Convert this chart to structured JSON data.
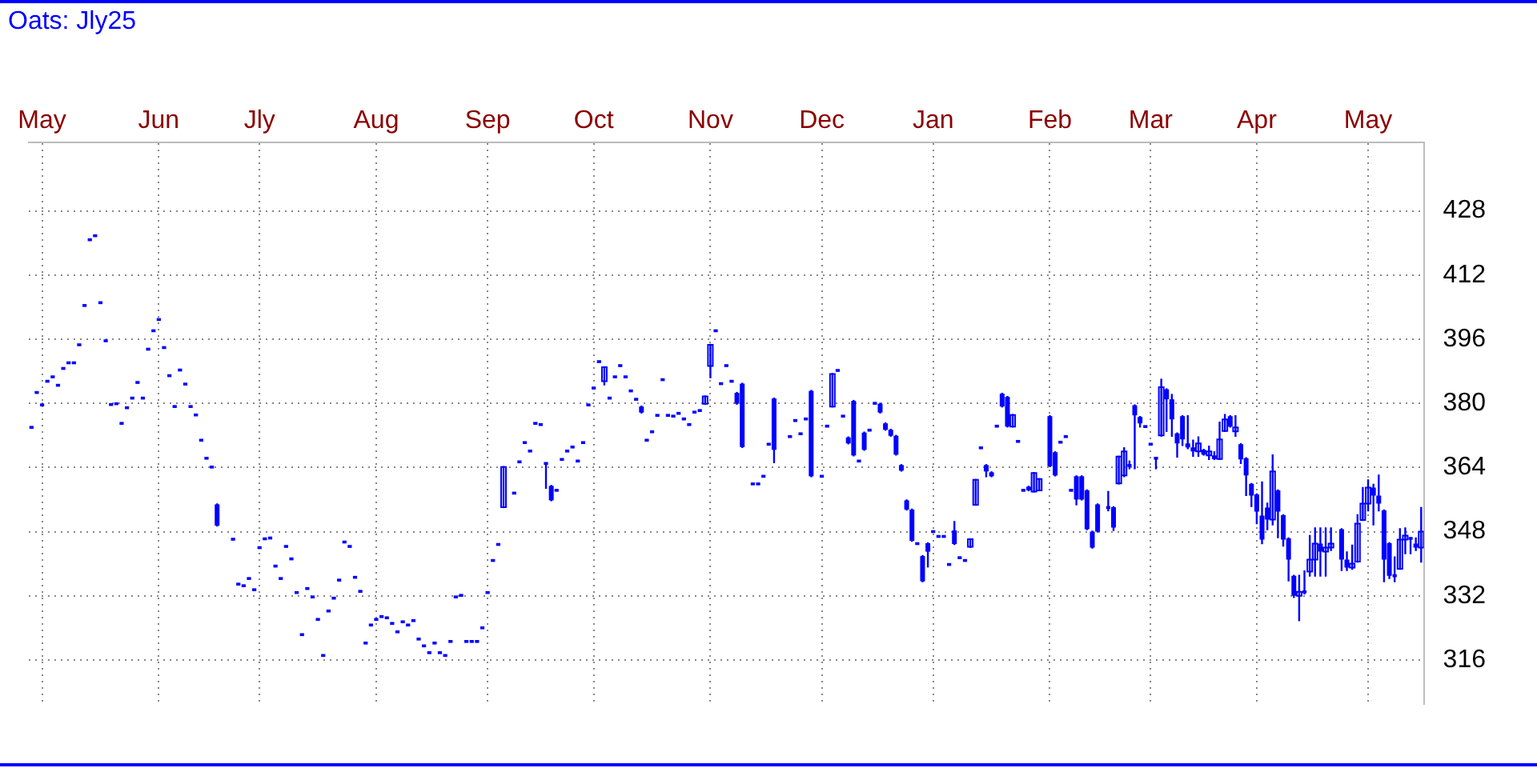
{
  "chart_data": {
    "type": "candlestick",
    "title": "Oats: Jly25",
    "color": "#0000ff",
    "categories": [
      null,
      null,
      "May",
      null,
      null,
      null,
      null,
      null,
      null,
      null,
      null,
      null,
      null,
      null,
      null,
      null,
      null,
      null,
      null,
      null,
      null,
      null,
      null,
      null,
      "Jun",
      null,
      null,
      null,
      null,
      null,
      null,
      null,
      null,
      null,
      null,
      null,
      null,
      null,
      null,
      null,
      null,
      null,
      null,
      "Jly",
      null,
      null,
      null,
      null,
      null,
      null,
      null,
      null,
      null,
      null,
      null,
      null,
      null,
      null,
      null,
      null,
      null,
      null,
      null,
      null,
      null,
      "Aug",
      null,
      null,
      null,
      null,
      null,
      null,
      null,
      null,
      null,
      null,
      null,
      null,
      null,
      null,
      null,
      null,
      null,
      null,
      null,
      null,
      "Sep",
      null,
      null,
      null,
      null,
      null,
      null,
      null,
      null,
      null,
      null,
      null,
      null,
      null,
      null,
      null,
      null,
      null,
      null,
      null,
      "Oct",
      null,
      null,
      null,
      null,
      null,
      null,
      null,
      null,
      null,
      null,
      null,
      null,
      null,
      null,
      null,
      null,
      null,
      null,
      null,
      null,
      null,
      "Nov",
      null,
      null,
      null,
      null,
      null,
      null,
      null,
      null,
      null,
      null,
      null,
      null,
      null,
      null,
      null,
      null,
      null,
      null,
      null,
      null,
      "Dec",
      null,
      null,
      null,
      null,
      null,
      null,
      null,
      null,
      null,
      null,
      null,
      null,
      null,
      null,
      null,
      null,
      null,
      null,
      null,
      null,
      "Jan",
      null,
      null,
      null,
      null,
      null,
      null,
      null,
      null,
      null,
      null,
      null,
      null,
      null,
      null,
      null,
      null,
      null,
      null,
      null,
      null,
      null,
      "Feb",
      null,
      null,
      null,
      null,
      null,
      null,
      null,
      null,
      null,
      null,
      null,
      null,
      null,
      null,
      null,
      null,
      null,
      null,
      "Mar",
      null,
      null,
      null,
      null,
      null,
      null,
      null,
      null,
      null,
      null,
      null,
      null,
      null,
      null,
      null,
      null,
      null,
      null,
      null,
      "Apr",
      null,
      null,
      null,
      null,
      null,
      null,
      null,
      null,
      null,
      null,
      null,
      null,
      null,
      null,
      null,
      null,
      null,
      null,
      null,
      null,
      "May",
      null,
      null,
      null,
      null,
      null,
      null,
      null,
      null,
      null,
      null
    ],
    "ohlc": [
      [
        374.0,
        374.0,
        374.0,
        374.0
      ],
      [
        382.7,
        382.7,
        382.7,
        382.7
      ],
      [
        379.6,
        379.6,
        379.6,
        379.6
      ],
      [
        385.5,
        385.5,
        385.5,
        385.5
      ],
      [
        386.6,
        386.6,
        386.6,
        386.6
      ],
      [
        384.5,
        384.5,
        384.5,
        384.5
      ],
      [
        388.7,
        388.7,
        388.7,
        388.7
      ],
      [
        390.1,
        390.1,
        390.1,
        390.1
      ],
      [
        390.1,
        390.1,
        390.1,
        390.1
      ],
      [
        394.6,
        394.6,
        394.6,
        394.6
      ],
      [
        404.4,
        404.4,
        404.4,
        404.4
      ],
      [
        420.8,
        420.8,
        420.8,
        420.8
      ],
      [
        421.8,
        421.8,
        421.8,
        421.8
      ],
      [
        405.1,
        405.1,
        405.1,
        405.1
      ],
      [
        395.6,
        395.6,
        395.6,
        395.6
      ],
      [
        379.7,
        379.7,
        379.7,
        379.7
      ],
      [
        379.9,
        379.9,
        379.9,
        379.9
      ],
      [
        375.0,
        375.0,
        375.0,
        375.0
      ],
      [
        378.9,
        378.9,
        378.9,
        378.9
      ],
      [
        381.3,
        381.3,
        381.3,
        381.3
      ],
      [
        385.2,
        385.2,
        385.2,
        385.2
      ],
      [
        381.3,
        381.3,
        381.3,
        381.3
      ],
      [
        393.5,
        393.5,
        393.5,
        393.5
      ],
      [
        398.1,
        398.1,
        398.1,
        398.1
      ],
      [
        400.9,
        400.9,
        400.9,
        400.9
      ],
      [
        393.9,
        393.9,
        393.9,
        393.9
      ],
      [
        386.9,
        386.9,
        386.9,
        386.9
      ],
      [
        379.2,
        379.2,
        379.2,
        379.2
      ],
      [
        388.3,
        388.3,
        388.3,
        388.3
      ],
      [
        384.8,
        384.8,
        384.8,
        384.8
      ],
      [
        379.2,
        379.2,
        379.2,
        379.2
      ],
      [
        377.1,
        377.1,
        377.1,
        377.1
      ],
      [
        370.8,
        370.8,
        370.8,
        370.8
      ],
      [
        366.3,
        366.3,
        366.3,
        366.3
      ],
      [
        364.1,
        364.1,
        364.1,
        364.1
      ],
      [
        354.8,
        354.8,
        349.5,
        349.5
      ],
      null,
      null,
      [
        346.1,
        346.1,
        346.1,
        346.1
      ],
      [
        334.9,
        334.9,
        334.9,
        334.9
      ],
      [
        334.5,
        334.5,
        334.5,
        334.5
      ],
      [
        336.3,
        336.3,
        336.3,
        336.3
      ],
      [
        333.5,
        333.5,
        333.5,
        333.5
      ],
      [
        344.0,
        344.0,
        344.0,
        344.0
      ],
      [
        346.2,
        346.2,
        346.2,
        346.2
      ],
      [
        346.4,
        346.4,
        346.4,
        346.4
      ],
      [
        339.4,
        339.4,
        339.4,
        339.4
      ],
      [
        336.3,
        336.3,
        336.3,
        336.3
      ],
      [
        344.3,
        344.3,
        344.3,
        344.3
      ],
      [
        341.2,
        341.2,
        341.2,
        341.2
      ],
      [
        332.8,
        332.8,
        332.8,
        332.8
      ],
      [
        322.3,
        322.3,
        322.3,
        322.3
      ],
      [
        333.8,
        333.8,
        333.8,
        333.8
      ],
      [
        331.7,
        331.7,
        331.7,
        331.7
      ],
      [
        326.1,
        326.1,
        326.1,
        326.1
      ],
      [
        317.1,
        317.1,
        317.1,
        317.1
      ],
      [
        328.2,
        328.2,
        328.2,
        328.2
      ],
      [
        331.4,
        331.4,
        331.4,
        331.4
      ],
      [
        335.9,
        335.9,
        335.9,
        335.9
      ],
      [
        345.4,
        345.4,
        345.4,
        345.4
      ],
      [
        344.3,
        344.3,
        344.3,
        344.3
      ],
      [
        336.6,
        336.6,
        336.6,
        336.6
      ],
      [
        333.1,
        333.1,
        333.1,
        333.1
      ],
      [
        320.2,
        320.2,
        320.2,
        320.2
      ],
      [
        324.7,
        324.7,
        324.7,
        324.7
      ],
      [
        326.1,
        326.1,
        326.1,
        326.1
      ],
      [
        326.8,
        326.8,
        326.8,
        326.8
      ],
      [
        326.5,
        326.5,
        326.5,
        326.5
      ],
      [
        325.1,
        325.1,
        325.1,
        325.1
      ],
      [
        323.0,
        323.0,
        323.0,
        323.0
      ],
      [
        325.5,
        325.5,
        325.5,
        325.5
      ],
      [
        324.7,
        324.7,
        324.7,
        324.7
      ],
      [
        325.8,
        325.8,
        325.8,
        325.8
      ],
      [
        321.2,
        321.2,
        321.2,
        321.2
      ],
      [
        319.5,
        319.5,
        319.5,
        319.5
      ],
      [
        317.8,
        317.8,
        317.8,
        317.8
      ],
      [
        320.2,
        320.2,
        320.2,
        320.2
      ],
      [
        317.8,
        317.8,
        317.8,
        317.8
      ],
      [
        317.1,
        317.1,
        317.1,
        317.1
      ],
      [
        320.6,
        320.6,
        320.6,
        320.6
      ],
      [
        331.7,
        331.7,
        331.7,
        331.7
      ],
      [
        332.1,
        332.1,
        332.1,
        332.1
      ],
      [
        320.6,
        320.6,
        320.6,
        320.6
      ],
      [
        320.6,
        320.6,
        320.6,
        320.6
      ],
      [
        320.6,
        320.6,
        320.6,
        320.6
      ],
      [
        324.0,
        324.0,
        324.0,
        324.0
      ],
      [
        332.8,
        332.8,
        332.8,
        332.8
      ],
      [
        340.8,
        340.8,
        340.8,
        340.8
      ],
      [
        344.8,
        344.8,
        344.8,
        344.8
      ],
      [
        354.1,
        364.1,
        354.1,
        364.1
      ],
      null,
      [
        357.6,
        357.6,
        357.6,
        357.6
      ],
      [
        365.4,
        365.4,
        365.4,
        365.4
      ],
      [
        370.2,
        370.2,
        370.2,
        370.2
      ],
      [
        368.1,
        368.1,
        368.1,
        368.1
      ],
      [
        375.0,
        375.0,
        375.0,
        375.0
      ],
      [
        374.7,
        374.7,
        374.7,
        374.7
      ],
      [
        365.0,
        365.0,
        358.9,
        365.0
      ],
      [
        359.4,
        359.4,
        355.8,
        355.8
      ],
      [
        358.3,
        358.3,
        358.3,
        358.3
      ],
      [
        366.0,
        366.0,
        366.0,
        366.0
      ],
      [
        368.1,
        368.1,
        368.1,
        368.1
      ],
      [
        369.1,
        369.1,
        369.1,
        369.1
      ],
      [
        365.6,
        365.6,
        365.6,
        365.6
      ],
      [
        370.2,
        370.2,
        370.2,
        370.2
      ],
      [
        379.6,
        379.6,
        379.6,
        379.6
      ],
      [
        383.8,
        383.8,
        383.8,
        383.8
      ],
      [
        390.4,
        390.4,
        390.4,
        390.4
      ],
      [
        385.5,
        389.0,
        384.7,
        389.0
      ],
      [
        381.3,
        381.3,
        381.3,
        381.3
      ],
      [
        386.6,
        386.6,
        386.6,
        386.6
      ],
      [
        389.4,
        389.4,
        389.4,
        389.4
      ],
      [
        386.6,
        386.6,
        386.6,
        386.6
      ],
      [
        383.1,
        383.1,
        383.1,
        383.1
      ],
      [
        381.0,
        381.0,
        381.0,
        381.0
      ],
      [
        379.2,
        379.2,
        377.7,
        377.7
      ],
      [
        370.8,
        370.8,
        370.8,
        370.8
      ],
      [
        372.9,
        372.9,
        372.9,
        372.9
      ],
      [
        377.0,
        377.0,
        377.0,
        377.0
      ],
      [
        385.9,
        385.9,
        385.9,
        385.9
      ],
      [
        377.0,
        377.0,
        377.0,
        377.0
      ],
      [
        376.8,
        376.8,
        376.8,
        376.8
      ],
      [
        377.5,
        377.5,
        377.5,
        377.5
      ],
      [
        376.1,
        376.1,
        376.1,
        376.1
      ],
      [
        374.7,
        374.7,
        374.7,
        374.7
      ],
      [
        377.8,
        377.8,
        377.8,
        377.8
      ],
      [
        378.2,
        378.2,
        378.2,
        378.2
      ],
      [
        379.9,
        381.7,
        379.9,
        381.7
      ],
      [
        389.3,
        394.6,
        386.5,
        394.6
      ],
      [
        398.1,
        398.1,
        398.1,
        398.1
      ],
      [
        384.9,
        384.9,
        384.9,
        384.9
      ],
      [
        389.4,
        389.4,
        389.4,
        389.4
      ],
      [
        385.5,
        385.5,
        385.5,
        385.5
      ],
      [
        382.6,
        382.6,
        379.9,
        379.9
      ],
      [
        384.9,
        384.9,
        369.1,
        369.1
      ],
      null,
      [
        359.9,
        359.9,
        359.9,
        359.9
      ],
      [
        359.9,
        359.9,
        359.9,
        359.9
      ],
      [
        361.8,
        361.8,
        361.8,
        361.8
      ],
      [
        369.8,
        369.8,
        369.8,
        369.8
      ],
      [
        381.2,
        381.2,
        365.3,
        368.4
      ],
      null,
      null,
      [
        371.7,
        371.7,
        371.7,
        371.7
      ],
      [
        375.7,
        375.7,
        375.7,
        375.7
      ],
      [
        372.4,
        372.4,
        372.4,
        372.4
      ],
      [
        376.1,
        376.1,
        376.1,
        376.1
      ],
      [
        383.1,
        383.1,
        361.8,
        361.8
      ],
      null,
      [
        361.8,
        361.8,
        361.8,
        361.8
      ],
      [
        374.3,
        374.3,
        374.3,
        374.3
      ],
      [
        379.2,
        387.3,
        379.2,
        387.3
      ],
      [
        388.2,
        388.2,
        388.2,
        388.2
      ],
      [
        376.8,
        376.8,
        376.8,
        376.8
      ],
      [
        371.5,
        371.5,
        370.0,
        370.0
      ],
      [
        380.6,
        380.6,
        367.0,
        367.0
      ],
      [
        365.6,
        365.6,
        365.6,
        365.6
      ],
      [
        372.7,
        372.7,
        368.4,
        368.4
      ],
      [
        373.3,
        373.3,
        373.3,
        373.3
      ],
      [
        380.0,
        380.0,
        380.0,
        380.0
      ],
      [
        379.9,
        379.9,
        377.7,
        377.7
      ],
      [
        375.0,
        375.0,
        373.4,
        373.4
      ],
      [
        373.4,
        373.4,
        371.9,
        371.9
      ],
      [
        371.9,
        371.9,
        367.2,
        367.2
      ],
      [
        364.6,
        364.6,
        363.2,
        363.2
      ],
      [
        355.8,
        355.8,
        353.5,
        353.5
      ],
      [
        353.5,
        353.5,
        345.7,
        345.7
      ],
      [
        345.0,
        345.0,
        345.0,
        345.0
      ],
      [
        341.9,
        341.9,
        335.6,
        335.6
      ],
      [
        345.1,
        345.1,
        339.3,
        343.0
      ],
      [
        348.0,
        348.0,
        348.0,
        348.0
      ],
      [
        346.8,
        346.8,
        346.8,
        346.8
      ],
      [
        346.8,
        346.8,
        346.8,
        346.8
      ],
      [
        339.8,
        339.8,
        339.8,
        339.8
      ],
      [
        348.3,
        350.4,
        344.9,
        344.9
      ],
      [
        341.5,
        341.5,
        341.5,
        341.5
      ],
      [
        340.8,
        340.8,
        340.8,
        340.8
      ],
      [
        344.2,
        346.1,
        344.2,
        346.1
      ],
      [
        354.7,
        360.9,
        354.7,
        360.9
      ],
      [
        368.9,
        368.9,
        368.9,
        368.9
      ],
      [
        364.6,
        364.6,
        361.8,
        363.0
      ],
      [
        362.8,
        362.8,
        361.8,
        361.8
      ],
      [
        374.3,
        374.3,
        374.3,
        374.3
      ],
      [
        382.4,
        382.4,
        379.2,
        379.2
      ],
      [
        381.6,
        381.6,
        374.2,
        374.2
      ],
      [
        374.2,
        377.1,
        374.2,
        377.1
      ],
      [
        370.5,
        370.5,
        370.5,
        370.5
      ],
      [
        358.3,
        358.3,
        358.3,
        358.3
      ],
      [
        359.2,
        359.2,
        358.3,
        358.3
      ],
      [
        358.0,
        362.6,
        358.0,
        362.6
      ],
      [
        358.3,
        361.1,
        358.3,
        361.1
      ],
      null,
      [
        376.8,
        376.8,
        364.3,
        364.3
      ],
      [
        367.8,
        367.8,
        362.0,
        362.0
      ],
      [
        370.3,
        370.3,
        370.3,
        370.3
      ],
      [
        371.7,
        371.7,
        371.7,
        371.7
      ],
      [
        358.3,
        358.3,
        358.3,
        358.3
      ],
      [
        361.8,
        361.8,
        354.8,
        356.0
      ],
      [
        361.8,
        361.8,
        356.0,
        356.0
      ],
      [
        358.3,
        358.3,
        348.6,
        348.6
      ],
      [
        348.0,
        348.0,
        344.0,
        344.0
      ],
      [
        354.8,
        354.8,
        348.0,
        348.0
      ],
      null,
      [
        354.0,
        357.9,
        353.3,
        354.0
      ],
      [
        354.1,
        354.1,
        348.4,
        349.0
      ],
      [
        360.0,
        366.7,
        360.0,
        366.7
      ],
      [
        362.0,
        368.8,
        361.8,
        368.0
      ],
      [
        364.5,
        365.5,
        363.8,
        364.5
      ],
      [
        379.5,
        379.5,
        363.8,
        377.0
      ],
      [
        376.6,
        376.6,
        374.2,
        375.0
      ],
      [
        374.2,
        374.2,
        374.2,
        374.2
      ],
      [
        369.8,
        369.8,
        369.8,
        369.8
      ],
      [
        366.3,
        366.3,
        363.8,
        366.0
      ],
      [
        372.0,
        385.9,
        371.9,
        384.0
      ],
      [
        383.5,
        383.5,
        373.1,
        381.0
      ],
      [
        381.0,
        382.1,
        371.9,
        376.0
      ],
      [
        372.5,
        372.5,
        366.7,
        370.0
      ],
      [
        376.8,
        376.8,
        369.6,
        371.0
      ],
      [
        370.0,
        376.8,
        368.8,
        369.0
      ],
      [
        369.0,
        370.7,
        366.9,
        368.0
      ],
      [
        368.0,
        371.5,
        366.9,
        370.0
      ],
      [
        368.4,
        368.4,
        367.2,
        367.2
      ],
      [
        367.0,
        369.2,
        366.1,
        368.0
      ],
      [
        367.0,
        367.8,
        366.1,
        366.1
      ],
      [
        366.1,
        375.2,
        366.1,
        371.0
      ],
      [
        373.1,
        377.1,
        373.1,
        376.0
      ],
      [
        376.8,
        376.8,
        374.2,
        374.2
      ],
      [
        373.0,
        376.8,
        371.9,
        374.0
      ],
      [
        369.8,
        369.8,
        365.1,
        366.0
      ],
      [
        366.3,
        366.3,
        357.1,
        362.0
      ],
      [
        359.9,
        359.9,
        354.4,
        357.0
      ],
      [
        357.3,
        357.3,
        350.1,
        353.0
      ],
      [
        352.0,
        360.3,
        345.1,
        346.0
      ],
      [
        354.0,
        355.0,
        348.6,
        351.0
      ],
      [
        351.0,
        367.0,
        349.8,
        363.0
      ],
      [
        358.3,
        358.3,
        346.6,
        353.0
      ],
      [
        352.1,
        352.1,
        344.5,
        346.0
      ],
      [
        346.3,
        346.3,
        335.8,
        341.0
      ],
      [
        337.0,
        337.0,
        331.7,
        332.0
      ],
      [
        332.0,
        337.0,
        325.9,
        333.0
      ],
      [
        333.0,
        338.1,
        332.6,
        333.0
      ],
      [
        338.0,
        346.9,
        337.0,
        341.0
      ],
      [
        341.0,
        348.8,
        337.0,
        345.0
      ],
      [
        345.0,
        348.8,
        337.0,
        343.0
      ],
      [
        343.0,
        348.8,
        337.0,
        344.0
      ],
      [
        344.0,
        348.8,
        343.4,
        345.0
      ],
      null,
      [
        348.6,
        348.6,
        338.4,
        341.0
      ],
      [
        341.0,
        342.8,
        338.4,
        339.0
      ],
      [
        339.0,
        344.5,
        338.7,
        340.0
      ],
      [
        340.5,
        352.1,
        340.5,
        350.0
      ],
      [
        350.9,
        358.9,
        350.9,
        355.0
      ],
      [
        355.0,
        360.8,
        353.3,
        359.0
      ],
      [
        359.0,
        359.7,
        349.8,
        357.0
      ],
      [
        357.0,
        362.0,
        353.3,
        355.0
      ],
      [
        353.3,
        353.3,
        335.6,
        341.0
      ],
      [
        345.1,
        345.1,
        336.4,
        337.0
      ],
      [
        337.0,
        341.6,
        335.6,
        337.0
      ],
      [
        338.7,
        348.6,
        338.7,
        346.0
      ],
      [
        346.0,
        348.8,
        342.6,
        347.0
      ],
      [
        346.3,
        346.3,
        342.6,
        346.0
      ],
      [
        345.0,
        346.3,
        343.4,
        344.0
      ],
      [
        344.0,
        353.9,
        340.5,
        348.0
      ]
    ],
    "ylim": [
      305,
      445
    ],
    "yticks": [
      316,
      332,
      348,
      364,
      380,
      396,
      412,
      428
    ],
    "grid": true
  }
}
